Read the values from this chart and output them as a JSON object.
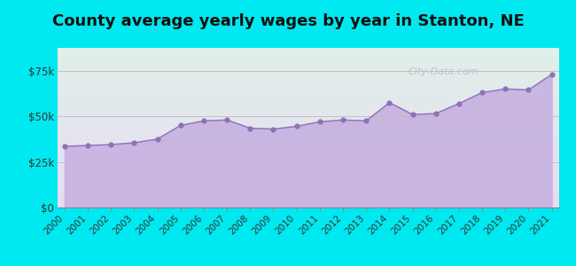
{
  "title": "County average yearly wages by year in Stanton, NE",
  "years": [
    2000,
    2001,
    2002,
    2003,
    2004,
    2005,
    2006,
    2007,
    2008,
    2009,
    2010,
    2011,
    2012,
    2013,
    2014,
    2015,
    2016,
    2017,
    2018,
    2019,
    2020,
    2021
  ],
  "values": [
    33500,
    34000,
    34500,
    35500,
    37500,
    45000,
    47500,
    48000,
    43500,
    43000,
    44500,
    47000,
    48000,
    47500,
    57500,
    51000,
    51500,
    57000,
    63000,
    65000,
    64500,
    73000
  ],
  "fill_color": "#c4aee0",
  "line_color": "#9070b8",
  "marker_color": "#9070b8",
  "outer_bg_color": "#00e8f0",
  "grid_color": "#bbbbbb",
  "ylim": [
    0,
    87500
  ],
  "yticks": [
    0,
    25000,
    50000,
    75000
  ],
  "ytick_labels": [
    "$0",
    "$25k",
    "$50k",
    "$75k"
  ],
  "title_fontsize": 13,
  "watermark_text": "City-Data.com",
  "inner_bg_top_color": "#e0f0e8",
  "inner_bg_bottom_color": "#e8dcf4"
}
